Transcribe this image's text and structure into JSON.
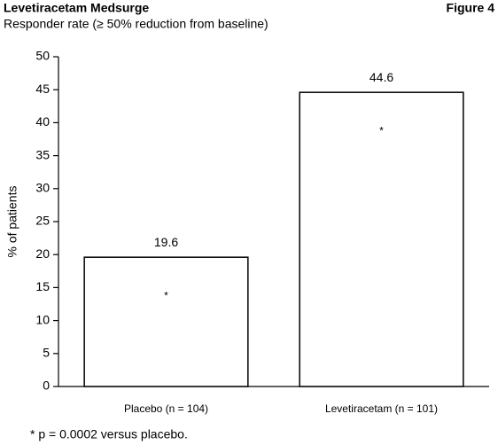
{
  "chart_data": {
    "type": "bar",
    "title": "Levetiracetam Medsurge",
    "figure_label": "Figure 4",
    "subtitle": "Responder rate (≥ 50% reduction from baseline)",
    "y_label": "% of patients",
    "categories": [
      "Placebo (n = 104)",
      "Levetiracetam (n = 101)"
    ],
    "values": [
      19.6,
      44.6
    ],
    "bar_annotations": [
      "*",
      "*"
    ],
    "color": "#ffffff",
    "edge_color": "#000000",
    "ylim": [
      0,
      50
    ],
    "yticks": [
      0,
      5,
      10,
      15,
      20,
      25,
      30,
      35,
      40,
      45,
      50
    ],
    "grid": false,
    "footnote": "* p = 0.0002 versus placebo."
  }
}
